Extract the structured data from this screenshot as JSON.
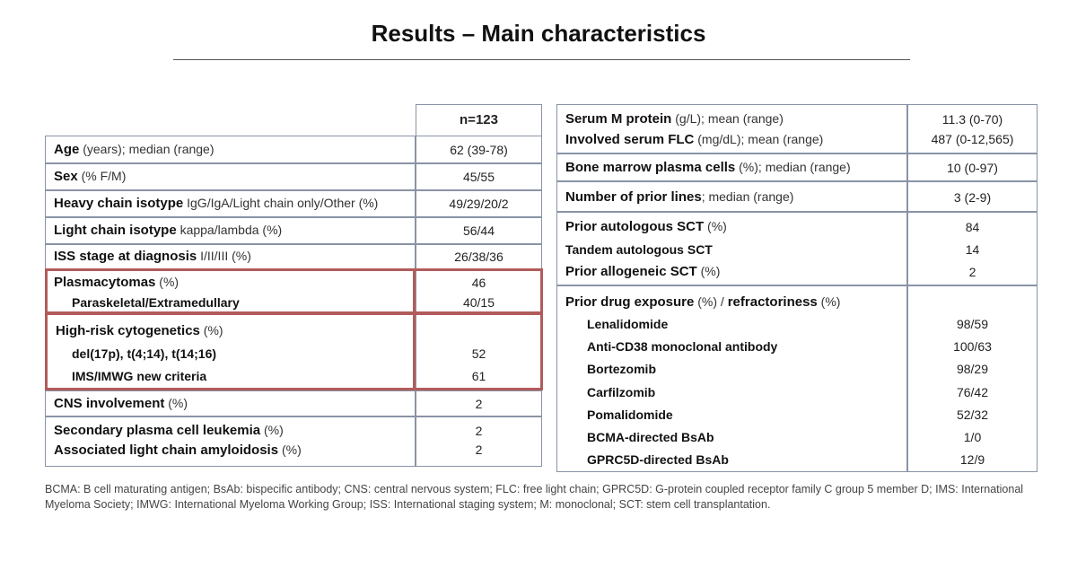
{
  "title": "Results – Main characteristics",
  "left_table": {
    "header": "n=123",
    "rows": [
      {
        "label": "Age",
        "qualifier": " (years); median (range)",
        "value": "62 (39-78)"
      },
      {
        "label": "Sex",
        "qualifier": " (% F/M)",
        "value": "45/55"
      },
      {
        "label": "Heavy chain isotype",
        "qualifier": " IgG/IgA/Light chain only/Other (%)",
        "value": "49/29/20/2"
      },
      {
        "label": "Light chain isotype",
        "qualifier": " kappa/lambda (%)",
        "value": "56/44"
      },
      {
        "label": "ISS stage at diagnosis",
        "qualifier": " I/II/III (%)",
        "value": "26/38/36"
      }
    ],
    "plasmacytomas": {
      "label": "Plasmacytomas",
      "qualifier": " (%)",
      "value": "46",
      "sub_label": "Paraskeletal/Extramedullary",
      "sub_value": "40/15"
    },
    "cytogenetics": {
      "label": "High-risk cytogenetics",
      "qualifier": " (%)",
      "sub1_label": "del(17p), t(4;14), t(14;16)",
      "sub1_value": "52",
      "sub2_label": "IMS/IMWG new criteria",
      "sub2_value": "61"
    },
    "cns": {
      "label": "CNS involvement",
      "qualifier": " (%)",
      "value": "2"
    },
    "leukemia": {
      "label": "Secondary plasma cell leukemia",
      "qualifier": " (%)",
      "value": "2"
    },
    "amyloidosis": {
      "label": "Associated light chain amyloidosis",
      "qualifier": " (%)",
      "value": "2"
    }
  },
  "right_table": {
    "serum": {
      "label": "Serum M protein",
      "qualifier": " (g/L); mean (range)",
      "value": "11.3 (0-70)"
    },
    "flc": {
      "label": "Involved serum FLC",
      "qualifier": " (mg/dL); mean (range)",
      "value": "487 (0-12,565)"
    },
    "marrow": {
      "label": "Bone marrow plasma cells",
      "qualifier": " (%); median (range)",
      "value": "10 (0-97)"
    },
    "lines": {
      "label": "Number of prior lines",
      "qualifier": "; median (range)",
      "value": "3 (2-9)"
    },
    "auto_sct": {
      "label": "Prior autologous SCT",
      "qualifier": " (%)",
      "value": "84"
    },
    "tandem": {
      "label": "Tandem autologous SCT",
      "value": "14"
    },
    "allo": {
      "label": "Prior allogeneic SCT",
      "qualifier": " (%)",
      "value": "2"
    },
    "drug_header": {
      "label1": "Prior drug exposure",
      "q1": " (%) / ",
      "label2": "refractoriness",
      "q2": " (%)"
    },
    "drugs": [
      {
        "name": "Lenalidomide",
        "value": "98/59"
      },
      {
        "name": "Anti-CD38 monoclonal antibody",
        "value": "100/63"
      },
      {
        "name": "Bortezomib",
        "value": "98/29"
      },
      {
        "name": "Carfilzomib",
        "value": "76/42"
      },
      {
        "name": "Pomalidomide",
        "value": "52/32"
      },
      {
        "name": "BCMA-directed BsAb",
        "value": "1/0"
      },
      {
        "name": "GPRC5D-directed BsAb",
        "value": "12/9"
      }
    ]
  },
  "footnote": "BCMA: B cell maturating antigen; BsAb: bispecific antibody; CNS: central nervous system; FLC: free light chain; GPRC5D: G-protein coupled receptor family C group 5 member D; IMS: International Myeloma Society; IMWG: International Myeloma Working Group; ISS: International staging system; M: monoclonal; SCT: stem cell transplantation."
}
